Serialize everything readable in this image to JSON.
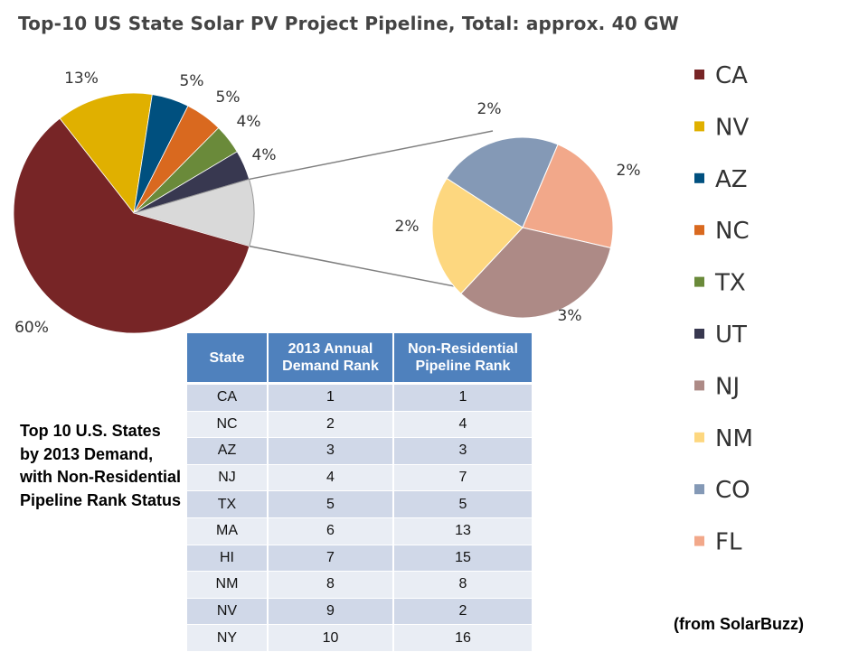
{
  "chart_data": {
    "type": "pie",
    "title": "Top-10 US State Solar PV Project Pipeline, Total: approx. 40 GW",
    "slices": [
      {
        "name": "CA",
        "value": 60,
        "label": "60%",
        "color": "#772526"
      },
      {
        "name": "NV",
        "value": 13,
        "label": "13%",
        "color": "#e0b000"
      },
      {
        "name": "AZ",
        "value": 5,
        "label": "5%",
        "color": "#00507f"
      },
      {
        "name": "NC",
        "value": 5,
        "label": "5%",
        "color": "#d9691f"
      },
      {
        "name": "TX",
        "value": 4,
        "label": "4%",
        "color": "#6a8a3a"
      },
      {
        "name": "UT",
        "value": 4,
        "label": "4%",
        "color": "#383850"
      },
      {
        "name": "NJ",
        "value": 3,
        "label": "3%",
        "color": "#ad8a86"
      },
      {
        "name": "NM",
        "value": 2,
        "label": "2%",
        "color": "#fdd77f"
      },
      {
        "name": "CO",
        "value": 2,
        "label": "2%",
        "color": "#8499b6"
      },
      {
        "name": "FL",
        "value": 2,
        "label": "2%",
        "color": "#f2a88a"
      }
    ],
    "exploded_group": [
      "NJ",
      "NM",
      "CO",
      "FL"
    ],
    "other_color": "#d9d9d9",
    "legend_position": "right"
  },
  "table": {
    "headers": [
      "State",
      "2013 Annual Demand Rank",
      "Non-Residential Pipeline Rank"
    ],
    "header_lines": [
      [
        "State"
      ],
      [
        "2013 Annual",
        "Demand Rank"
      ],
      [
        "Non-Residential",
        "Pipeline Rank"
      ]
    ],
    "rows": [
      [
        "CA",
        "1",
        "1"
      ],
      [
        "NC",
        "2",
        "4"
      ],
      [
        "AZ",
        "3",
        "3"
      ],
      [
        "NJ",
        "4",
        "7"
      ],
      [
        "TX",
        "5",
        "5"
      ],
      [
        "MA",
        "6",
        "13"
      ],
      [
        "HI",
        "7",
        "15"
      ],
      [
        "NM",
        "8",
        "8"
      ],
      [
        "NV",
        "9",
        "2"
      ],
      [
        "NY",
        "10",
        "16"
      ]
    ]
  },
  "note": "Top 10 U.S. States by 2013 Demand, with Non-Residential Pipeline Rank Status",
  "source": "(from SolarBuzz)"
}
